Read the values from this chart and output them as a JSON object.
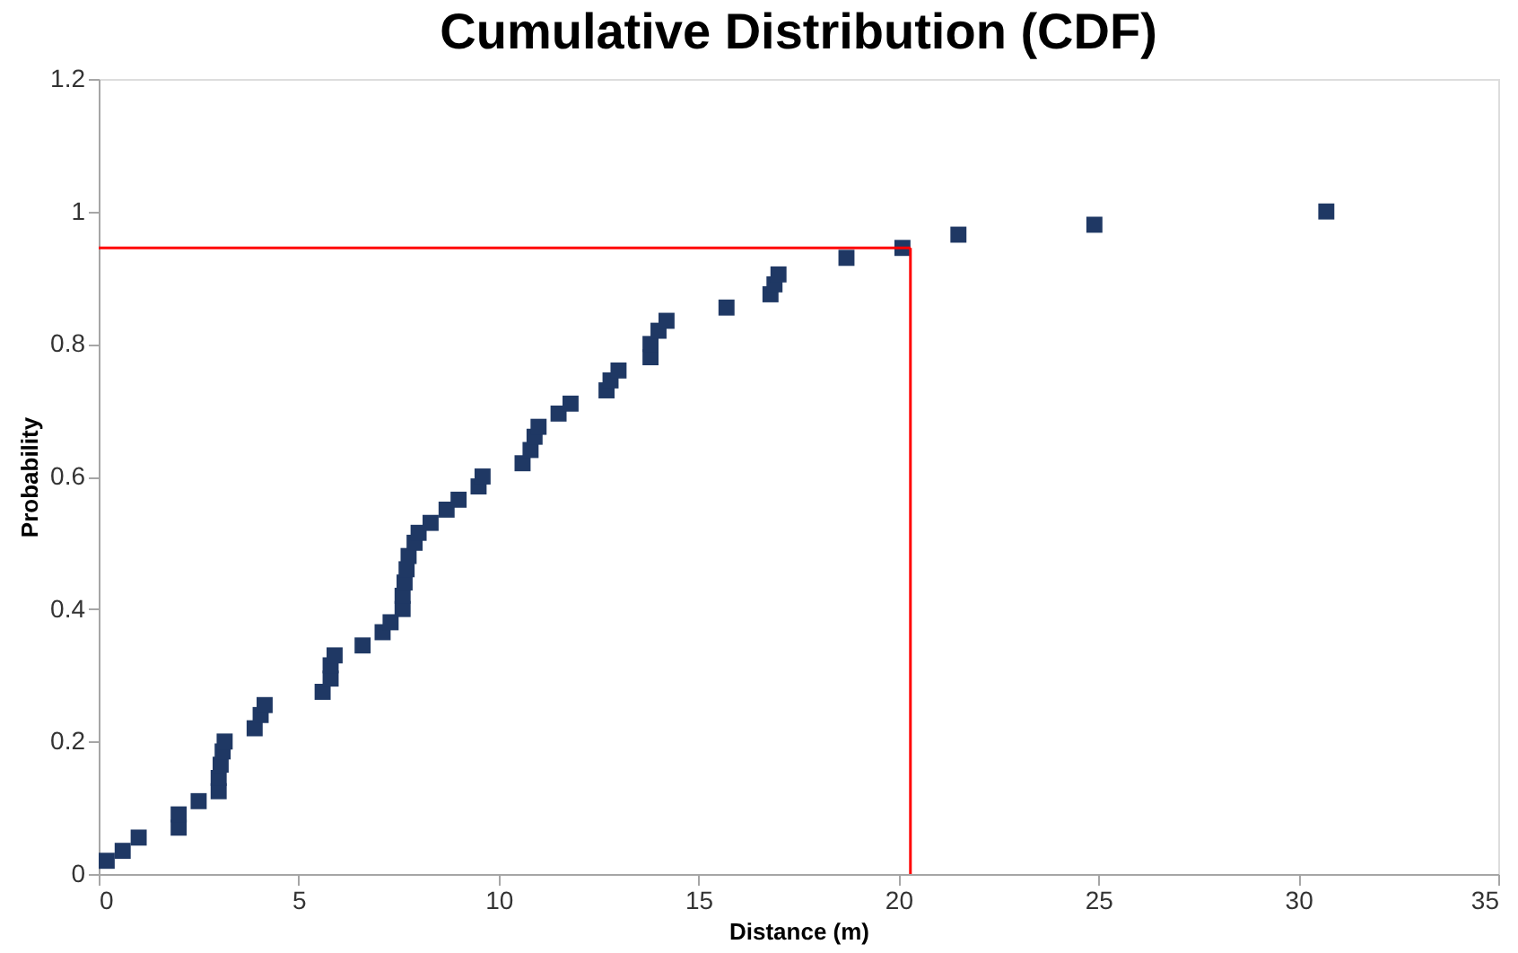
{
  "chart_data": {
    "type": "scatter",
    "title": "Cumulative Distribution (CDF)",
    "xlabel": "Distance (m)",
    "ylabel": "Probability",
    "x": [
      0.2,
      0.6,
      1,
      2,
      2,
      2.5,
      3,
      3,
      3.05,
      3.1,
      3.15,
      3.9,
      4.05,
      4.15,
      5.6,
      5.8,
      5.8,
      5.9,
      6.6,
      7.1,
      7.3,
      7.6,
      7.6,
      7.65,
      7.7,
      7.75,
      7.9,
      8.0,
      8.3,
      8.7,
      9.0,
      9.5,
      9.6,
      10.6,
      10.8,
      10.9,
      11.0,
      11.5,
      11.8,
      12.7,
      12.8,
      13.0,
      13.8,
      13.8,
      14.0,
      14.2,
      15.7,
      16.8,
      16.9,
      17.0,
      18.7,
      20.1,
      21.5,
      24.9,
      30.7
    ],
    "series": [
      {
        "color": "#1f3864",
        "values": [
          0.02,
          0.035,
          0.055,
          0.07,
          0.09,
          0.11,
          0.125,
          0.145,
          0.165,
          0.185,
          0.2,
          0.22,
          0.24,
          0.255,
          0.275,
          0.295,
          0.315,
          0.33,
          0.345,
          0.365,
          0.38,
          0.4,
          0.42,
          0.44,
          0.46,
          0.48,
          0.5,
          0.515,
          0.53,
          0.55,
          0.565,
          0.585,
          0.6,
          0.62,
          0.64,
          0.66,
          0.675,
          0.695,
          0.71,
          0.73,
          0.745,
          0.76,
          0.78,
          0.8,
          0.82,
          0.835,
          0.855,
          0.875,
          0.89,
          0.905,
          0.93,
          0.945,
          0.965,
          0.98,
          1.0
        ]
      }
    ],
    "marker": "square",
    "grid": false,
    "xlim": [
      0,
      35
    ],
    "xticks": [
      0,
      5,
      10,
      15,
      20,
      25,
      30,
      35
    ],
    "ylim": [
      0,
      1.2
    ],
    "yticks": [
      0,
      0.2,
      0.4,
      0.6,
      0.8,
      1,
      1.2
    ],
    "ref_lines": [
      {
        "axis": "y",
        "value": 0.945,
        "label": null,
        "color": "#ff0000"
      },
      {
        "axis": "x",
        "value": 20.3,
        "label": null,
        "color": "#ff0000"
      }
    ]
  }
}
